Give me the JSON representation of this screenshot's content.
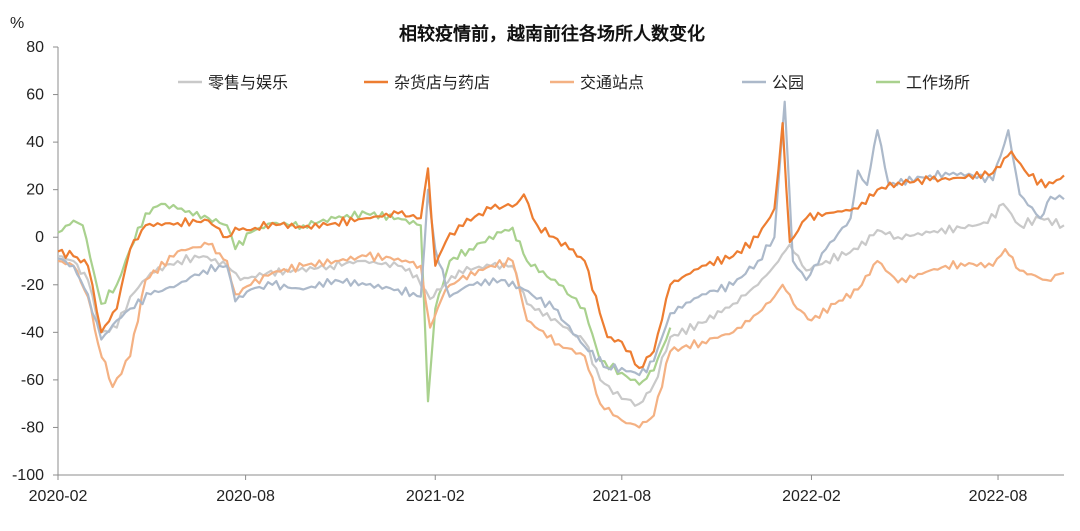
{
  "chart_data": {
    "type": "line",
    "title": "相较疫情前，越南前往各场所人数变化",
    "y_unit": "%",
    "ylim": [
      -100,
      80
    ],
    "y_ticks": [
      "80",
      "60",
      "40",
      "20",
      "0",
      "-20",
      "-40",
      "-60",
      "-80",
      "-100"
    ],
    "y_tick_values": [
      80,
      60,
      40,
      20,
      0,
      -20,
      -40,
      -60,
      -80,
      -100
    ],
    "x_ticks": [
      "2020-02",
      "2020-08",
      "2021-02",
      "2021-08",
      "2022-02",
      "2022-08"
    ],
    "x_tick_values": [
      "2020-02-15",
      "2020-08-15",
      "2021-02-15",
      "2021-08-15",
      "2022-02-15",
      "2022-08-15"
    ],
    "xlim": [
      "2020-02-15",
      "2022-10-18"
    ],
    "grid": false,
    "legend_position": "top",
    "series": [
      {
        "name": "零售与娱乐",
        "color": "#c9c9c9",
        "points": [
          [
            "2020-02-15",
            -8
          ],
          [
            "2020-03-01",
            -10
          ],
          [
            "2020-03-15",
            -18
          ],
          [
            "2020-03-28",
            -40
          ],
          [
            "2020-04-12",
            -38
          ],
          [
            "2020-04-25",
            -25
          ],
          [
            "2020-05-15",
            -15
          ],
          [
            "2020-06-10",
            -10
          ],
          [
            "2020-07-05",
            -8
          ],
          [
            "2020-07-28",
            -12
          ],
          [
            "2020-08-10",
            -18
          ],
          [
            "2020-09-05",
            -15
          ],
          [
            "2020-10-05",
            -14
          ],
          [
            "2020-11-05",
            -12
          ],
          [
            "2020-12-05",
            -10
          ],
          [
            "2021-01-10",
            -12
          ],
          [
            "2021-01-28",
            -16
          ],
          [
            "2021-02-10",
            -26
          ],
          [
            "2021-02-20",
            -22
          ],
          [
            "2021-03-10",
            -14
          ],
          [
            "2021-04-10",
            -12
          ],
          [
            "2021-05-01",
            -12
          ],
          [
            "2021-05-15",
            -28
          ],
          [
            "2021-06-15",
            -36
          ],
          [
            "2021-07-10",
            -44
          ],
          [
            "2021-07-25",
            -60
          ],
          [
            "2021-08-15",
            -68
          ],
          [
            "2021-09-01",
            -70
          ],
          [
            "2021-09-15",
            -62
          ],
          [
            "2021-10-01",
            -42
          ],
          [
            "2021-11-01",
            -36
          ],
          [
            "2021-12-01",
            -28
          ],
          [
            "2021-12-25",
            -20
          ],
          [
            "2022-01-10",
            -12
          ],
          [
            "2022-01-25",
            -3
          ],
          [
            "2022-02-10",
            -14
          ],
          [
            "2022-03-01",
            -10
          ],
          [
            "2022-04-01",
            -5
          ],
          [
            "2022-04-20",
            3
          ],
          [
            "2022-05-10",
            0
          ],
          [
            "2022-06-10",
            2
          ],
          [
            "2022-07-10",
            4
          ],
          [
            "2022-08-05",
            6
          ],
          [
            "2022-08-20",
            14
          ],
          [
            "2022-09-05",
            5
          ],
          [
            "2022-09-25",
            8
          ],
          [
            "2022-10-18",
            5
          ]
        ]
      },
      {
        "name": "杂货店与药店",
        "color": "#ed7d31",
        "points": [
          [
            "2020-02-15",
            -6
          ],
          [
            "2020-03-01",
            -8
          ],
          [
            "2020-03-15",
            -12
          ],
          [
            "2020-03-28",
            -40
          ],
          [
            "2020-04-12",
            -30
          ],
          [
            "2020-04-25",
            -5
          ],
          [
            "2020-05-10",
            5
          ],
          [
            "2020-06-10",
            6
          ],
          [
            "2020-07-10",
            7
          ],
          [
            "2020-07-28",
            0
          ],
          [
            "2020-08-05",
            4
          ],
          [
            "2020-08-20",
            3
          ],
          [
            "2020-09-10",
            6
          ],
          [
            "2020-10-10",
            4
          ],
          [
            "2020-11-10",
            6
          ],
          [
            "2020-12-10",
            8
          ],
          [
            "2021-01-10",
            10
          ],
          [
            "2021-02-01",
            8
          ],
          [
            "2021-02-08",
            29
          ],
          [
            "2021-02-15",
            -12
          ],
          [
            "2021-02-25",
            -2
          ],
          [
            "2021-03-10",
            5
          ],
          [
            "2021-04-10",
            12
          ],
          [
            "2021-05-05",
            14
          ],
          [
            "2021-05-12",
            18
          ],
          [
            "2021-05-25",
            5
          ],
          [
            "2021-06-25",
            -5
          ],
          [
            "2021-07-10",
            -10
          ],
          [
            "2021-08-01",
            -42
          ],
          [
            "2021-08-15",
            -44
          ],
          [
            "2021-09-01",
            -55
          ],
          [
            "2021-09-15",
            -48
          ],
          [
            "2021-10-01",
            -20
          ],
          [
            "2021-11-01",
            -12
          ],
          [
            "2021-12-01",
            -8
          ],
          [
            "2021-12-25",
            0
          ],
          [
            "2022-01-10",
            12
          ],
          [
            "2022-01-18",
            48
          ],
          [
            "2022-01-25",
            -2
          ],
          [
            "2022-02-10",
            8
          ],
          [
            "2022-03-01",
            10
          ],
          [
            "2022-04-01",
            12
          ],
          [
            "2022-04-20",
            20
          ],
          [
            "2022-05-10",
            23
          ],
          [
            "2022-06-10",
            24
          ],
          [
            "2022-07-10",
            25
          ],
          [
            "2022-08-10",
            27
          ],
          [
            "2022-08-28",
            36
          ],
          [
            "2022-09-10",
            28
          ],
          [
            "2022-09-30",
            21
          ],
          [
            "2022-10-18",
            26
          ]
        ]
      },
      {
        "name": "交通站点",
        "color": "#f4b183",
        "points": [
          [
            "2020-02-15",
            -10
          ],
          [
            "2020-03-01",
            -12
          ],
          [
            "2020-03-15",
            -25
          ],
          [
            "2020-03-25",
            -45
          ],
          [
            "2020-04-08",
            -63
          ],
          [
            "2020-04-25",
            -50
          ],
          [
            "2020-05-10",
            -18
          ],
          [
            "2020-06-10",
            -6
          ],
          [
            "2020-07-10",
            -3
          ],
          [
            "2020-07-28",
            -10
          ],
          [
            "2020-08-05",
            -24
          ],
          [
            "2020-08-20",
            -20
          ],
          [
            "2020-09-10",
            -15
          ],
          [
            "2020-10-10",
            -12
          ],
          [
            "2020-11-10",
            -10
          ],
          [
            "2020-12-10",
            -8
          ],
          [
            "2021-01-10",
            -9
          ],
          [
            "2021-02-01",
            -12
          ],
          [
            "2021-02-10",
            -38
          ],
          [
            "2021-02-25",
            -22
          ],
          [
            "2021-03-10",
            -18
          ],
          [
            "2021-04-10",
            -12
          ],
          [
            "2021-05-01",
            -10
          ],
          [
            "2021-05-15",
            -35
          ],
          [
            "2021-06-15",
            -45
          ],
          [
            "2021-07-10",
            -50
          ],
          [
            "2021-07-25",
            -70
          ],
          [
            "2021-08-15",
            -77
          ],
          [
            "2021-09-01",
            -80
          ],
          [
            "2021-09-15",
            -75
          ],
          [
            "2021-10-01",
            -48
          ],
          [
            "2021-11-01",
            -44
          ],
          [
            "2021-12-01",
            -40
          ],
          [
            "2021-12-25",
            -32
          ],
          [
            "2022-01-10",
            -25
          ],
          [
            "2022-01-18",
            -20
          ],
          [
            "2022-02-01",
            -30
          ],
          [
            "2022-02-15",
            -35
          ],
          [
            "2022-03-10",
            -28
          ],
          [
            "2022-04-01",
            -22
          ],
          [
            "2022-04-20",
            -10
          ],
          [
            "2022-05-10",
            -19
          ],
          [
            "2022-06-10",
            -14
          ],
          [
            "2022-07-10",
            -11
          ],
          [
            "2022-08-10",
            -12
          ],
          [
            "2022-08-22",
            -5
          ],
          [
            "2022-09-05",
            -14
          ],
          [
            "2022-10-01",
            -18
          ],
          [
            "2022-10-18",
            -15
          ]
        ]
      },
      {
        "name": "公园",
        "color": "#acb9ca",
        "points": [
          [
            "2020-02-15",
            -9
          ],
          [
            "2020-03-01",
            -12
          ],
          [
            "2020-03-15",
            -24
          ],
          [
            "2020-03-28",
            -43
          ],
          [
            "2020-04-12",
            -35
          ],
          [
            "2020-04-25",
            -30
          ],
          [
            "2020-05-15",
            -24
          ],
          [
            "2020-06-10",
            -20
          ],
          [
            "2020-07-05",
            -14
          ],
          [
            "2020-07-28",
            -12
          ],
          [
            "2020-08-05",
            -27
          ],
          [
            "2020-08-20",
            -22
          ],
          [
            "2020-09-10",
            -20
          ],
          [
            "2020-10-10",
            -22
          ],
          [
            "2020-11-10",
            -18
          ],
          [
            "2020-12-10",
            -20
          ],
          [
            "2021-01-10",
            -22
          ],
          [
            "2021-02-01",
            -25
          ],
          [
            "2021-02-08",
            20
          ],
          [
            "2021-02-15",
            -5
          ],
          [
            "2021-03-01",
            -25
          ],
          [
            "2021-03-20",
            -20
          ],
          [
            "2021-04-20",
            -18
          ],
          [
            "2021-05-12",
            -22
          ],
          [
            "2021-06-10",
            -30
          ],
          [
            "2021-07-10",
            -46
          ],
          [
            "2021-08-01",
            -55
          ],
          [
            "2021-08-15",
            -55
          ],
          [
            "2021-09-01",
            -58
          ],
          [
            "2021-09-15",
            -52
          ],
          [
            "2021-10-01",
            -32
          ],
          [
            "2021-11-01",
            -24
          ],
          [
            "2021-12-01",
            -20
          ],
          [
            "2021-12-25",
            -10
          ],
          [
            "2022-01-10",
            0
          ],
          [
            "2022-01-20",
            57
          ],
          [
            "2022-01-28",
            -10
          ],
          [
            "2022-02-10",
            -18
          ],
          [
            "2022-03-01",
            -5
          ],
          [
            "2022-03-25",
            8
          ],
          [
            "2022-04-01",
            28
          ],
          [
            "2022-04-10",
            22
          ],
          [
            "2022-04-20",
            45
          ],
          [
            "2022-05-01",
            22
          ],
          [
            "2022-06-10",
            26
          ],
          [
            "2022-07-10",
            27
          ],
          [
            "2022-08-10",
            24
          ],
          [
            "2022-08-25",
            45
          ],
          [
            "2022-09-05",
            18
          ],
          [
            "2022-09-25",
            8
          ],
          [
            "2022-10-05",
            17
          ],
          [
            "2022-10-18",
            16
          ]
        ]
      },
      {
        "name": "工作场所",
        "color": "#a9d18e",
        "points": [
          [
            "2020-02-15",
            2
          ],
          [
            "2020-03-01",
            7
          ],
          [
            "2020-03-10",
            5
          ],
          [
            "2020-03-28",
            -28
          ],
          [
            "2020-04-12",
            -20
          ],
          [
            "2020-04-25",
            -5
          ],
          [
            "2020-05-10",
            10
          ],
          [
            "2020-05-25",
            14
          ],
          [
            "2020-06-10",
            12
          ],
          [
            "2020-07-10",
            8
          ],
          [
            "2020-07-28",
            5
          ],
          [
            "2020-08-05",
            -5
          ],
          [
            "2020-08-20",
            2
          ],
          [
            "2020-09-10",
            6
          ],
          [
            "2020-10-10",
            5
          ],
          [
            "2020-11-10",
            8
          ],
          [
            "2020-12-10",
            10
          ],
          [
            "2021-01-10",
            8
          ],
          [
            "2021-02-01",
            5
          ],
          [
            "2021-02-08",
            -69
          ],
          [
            "2021-02-15",
            -30
          ],
          [
            "2021-03-01",
            -10
          ],
          [
            "2021-03-20",
            -5
          ],
          [
            "2021-04-20",
            2
          ],
          [
            "2021-05-01",
            4
          ],
          [
            "2021-05-15",
            -10
          ],
          [
            "2021-06-15",
            -20
          ],
          [
            "2021-07-10",
            -30
          ],
          [
            "2021-07-25",
            -52
          ],
          [
            "2021-08-15",
            -57
          ],
          [
            "2021-09-01",
            -62
          ],
          [
            "2021-09-15",
            -56
          ],
          [
            "2021-10-01",
            -38
          ]
        ]
      }
    ]
  }
}
